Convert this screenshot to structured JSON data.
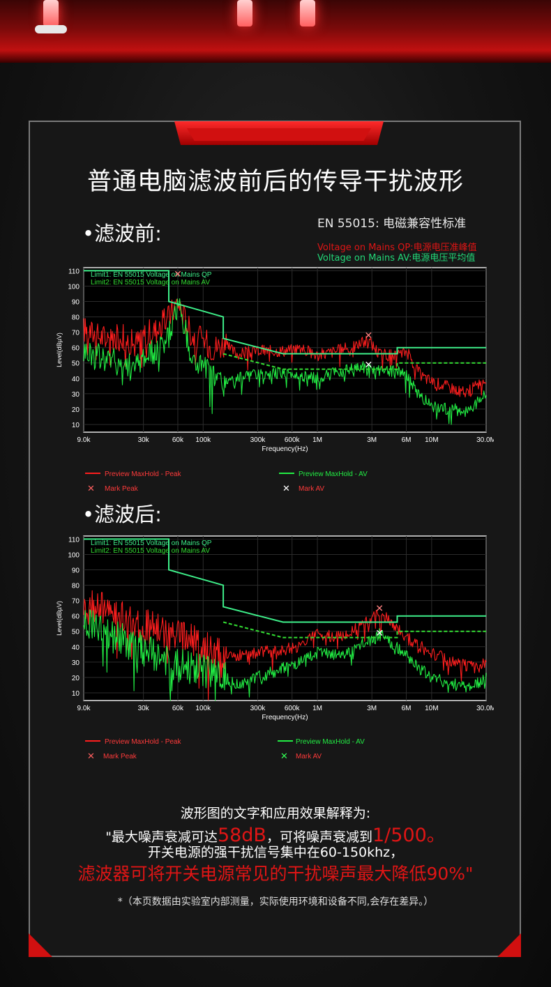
{
  "page": {
    "title": "普通电脑滤波前后的传导干扰波形",
    "section_before": "•滤波前:",
    "section_after": "•滤波后:",
    "standard": "EN 55015:  电磁兼容性标准",
    "legend_qp": "Voltage on Mains QP:电源电压准峰值",
    "legend_av": "Voltage on Mains AV:电源电压平均值",
    "explanation_line1": "波形图的文字和应用效果解释为:",
    "explanation_line2_a": "\"最大噪声衰减可达",
    "explanation_line2_hl1": "58dB",
    "explanation_line2_b": "，可将噪声衰减到",
    "explanation_line2_hl2": "1/500。",
    "explanation_line3": "开关电源的强干扰信号集中在60-150khz，",
    "explanation_line4": "滤波器可将开关电源常见的干扰噪声最大降低90%\"",
    "disclaimer": "*（本页数据由实验室内部测量，实际使用环境和设备不同,会存在差异。）"
  },
  "colors": {
    "accent_red": "#e01515",
    "peak_red": "#ff1e1e",
    "av_green": "#22ee44",
    "limit_green": "#3ef08a",
    "panel_bg": "#171717"
  },
  "chart_data": [
    {
      "type": "line",
      "panel": "before",
      "xlabel": "Frequency(Hz)",
      "ylabel": "Level(dBµV)",
      "x_scale": "log",
      "xlim": [
        9000,
        30000000
      ],
      "ylim": [
        5,
        112
      ],
      "xticks": [
        9000,
        30000,
        60000,
        100000,
        300000,
        600000,
        1000000,
        3000000,
        6000000,
        10000000,
        30000000
      ],
      "xtick_labels": [
        "9.0k",
        "30k",
        "60k",
        "100k",
        "300k",
        "600k",
        "1M",
        "3M",
        "6M",
        "10M",
        "30.0M"
      ],
      "yticks": [
        10,
        20,
        30,
        40,
        50,
        60,
        70,
        80,
        90,
        100,
        110
      ],
      "limit_labels": [
        "Limit1: EN 55015 Voltage on Mains QP",
        "Limit2: EN 55015 Voltage on Mains AV"
      ],
      "limits": [
        {
          "name": "Limit1: EN 55015 Voltage on Mains QP",
          "points": [
            [
              9000,
              110
            ],
            [
              50000,
              110
            ],
            [
              50000,
              90
            ],
            [
              150000,
              80
            ],
            [
              150000,
              66
            ],
            [
              500000,
              56
            ],
            [
              5000000,
              56
            ],
            [
              5000000,
              60
            ],
            [
              30000000,
              60
            ]
          ]
        },
        {
          "name": "Limit2: EN 55015 Voltage on Mains AV",
          "points": [
            [
              150000,
              56
            ],
            [
              500000,
              46
            ],
            [
              5000000,
              46
            ],
            [
              5000000,
              50
            ],
            [
              30000000,
              50
            ]
          ]
        }
      ],
      "series": [
        {
          "name": "Preview MaxHold - Peak",
          "points": [
            [
              9000,
              72
            ],
            [
              12000,
              68
            ],
            [
              15000,
              66
            ],
            [
              20000,
              67
            ],
            [
              25000,
              62
            ],
            [
              30000,
              68
            ],
            [
              40000,
              72
            ],
            [
              50000,
              80
            ],
            [
              60000,
              90
            ],
            [
              70000,
              78
            ],
            [
              80000,
              68
            ],
            [
              100000,
              65
            ],
            [
              120000,
              60
            ],
            [
              150000,
              62
            ],
            [
              200000,
              56
            ],
            [
              300000,
              58
            ],
            [
              500000,
              58
            ],
            [
              700000,
              60
            ],
            [
              1000000,
              55
            ],
            [
              1500000,
              58
            ],
            [
              2000000,
              60
            ],
            [
              2800000,
              65
            ],
            [
              3500000,
              56
            ],
            [
              5000000,
              54
            ],
            [
              6000000,
              58
            ],
            [
              8000000,
              42
            ],
            [
              10000000,
              38
            ],
            [
              15000000,
              34
            ],
            [
              20000000,
              30
            ],
            [
              25000000,
              36
            ],
            [
              30000000,
              40
            ]
          ]
        },
        {
          "name": "Preview MaxHold - AV",
          "points": [
            [
              9000,
              58
            ],
            [
              12000,
              55
            ],
            [
              15000,
              52
            ],
            [
              20000,
              50
            ],
            [
              25000,
              46
            ],
            [
              30000,
              55
            ],
            [
              40000,
              58
            ],
            [
              50000,
              68
            ],
            [
              60000,
              88
            ],
            [
              70000,
              70
            ],
            [
              80000,
              52
            ],
            [
              100000,
              48
            ],
            [
              120000,
              42
            ],
            [
              150000,
              36
            ],
            [
              200000,
              40
            ],
            [
              300000,
              42
            ],
            [
              500000,
              44
            ],
            [
              700000,
              42
            ],
            [
              1000000,
              40
            ],
            [
              1500000,
              44
            ],
            [
              2000000,
              46
            ],
            [
              2800000,
              48
            ],
            [
              3500000,
              44
            ],
            [
              5000000,
              46
            ],
            [
              6000000,
              42
            ],
            [
              8000000,
              28
            ],
            [
              10000000,
              22
            ],
            [
              15000000,
              20
            ],
            [
              20000000,
              18
            ],
            [
              25000000,
              24
            ],
            [
              30000000,
              30
            ]
          ]
        }
      ],
      "markers": [
        {
          "name": "Mark Peak",
          "x": 2800000,
          "y": 68
        },
        {
          "name": "Mark AV",
          "x": 2800000,
          "y": 49
        },
        {
          "name": "Mark Peak",
          "x": 60000,
          "y": 108
        }
      ],
      "legend": [
        "Preview MaxHold - Peak",
        "Preview MaxHold - AV",
        "Mark Peak",
        "Mark AV"
      ]
    },
    {
      "type": "line",
      "panel": "after",
      "xlabel": "Frequency(Hz)",
      "ylabel": "Level(dBµV)",
      "x_scale": "log",
      "xlim": [
        9000,
        30000000
      ],
      "ylim": [
        5,
        112
      ],
      "xticks": [
        9000,
        30000,
        60000,
        100000,
        300000,
        600000,
        1000000,
        3000000,
        6000000,
        10000000,
        30000000
      ],
      "xtick_labels": [
        "9.0k",
        "30k",
        "60k",
        "100k",
        "300k",
        "600k",
        "1M",
        "3M",
        "6M",
        "10M",
        "30.0M"
      ],
      "yticks": [
        10,
        20,
        30,
        40,
        50,
        60,
        70,
        80,
        90,
        100,
        110
      ],
      "limit_labels": [
        "Limit1: EN 55015 Voltage on Mains QP",
        "Limit2: EN 55015 Voltage on Mains AV"
      ],
      "limits": [
        {
          "name": "Limit1: EN 55015 Voltage on Mains QP",
          "points": [
            [
              9000,
              110
            ],
            [
              50000,
              110
            ],
            [
              50000,
              90
            ],
            [
              150000,
              80
            ],
            [
              150000,
              66
            ],
            [
              500000,
              56
            ],
            [
              5000000,
              56
            ],
            [
              5000000,
              60
            ],
            [
              30000000,
              60
            ]
          ]
        },
        {
          "name": "Limit2: EN 55015 Voltage on Mains AV",
          "points": [
            [
              150000,
              56
            ],
            [
              500000,
              46
            ],
            [
              5000000,
              46
            ],
            [
              5000000,
              50
            ],
            [
              30000000,
              50
            ]
          ]
        }
      ],
      "series": [
        {
          "name": "Preview MaxHold - Peak",
          "points": [
            [
              9000,
              68
            ],
            [
              12000,
              66
            ],
            [
              15000,
              64
            ],
            [
              20000,
              60
            ],
            [
              25000,
              56
            ],
            [
              30000,
              54
            ],
            [
              40000,
              52
            ],
            [
              50000,
              48
            ],
            [
              60000,
              46
            ],
            [
              80000,
              44
            ],
            [
              100000,
              40
            ],
            [
              120000,
              38
            ],
            [
              150000,
              36
            ],
            [
              200000,
              34
            ],
            [
              300000,
              36
            ],
            [
              500000,
              38
            ],
            [
              700000,
              40
            ],
            [
              1000000,
              48
            ],
            [
              1500000,
              46
            ],
            [
              2000000,
              50
            ],
            [
              3000000,
              58
            ],
            [
              3500000,
              62
            ],
            [
              4500000,
              56
            ],
            [
              5000000,
              52
            ],
            [
              6000000,
              46
            ],
            [
              8000000,
              40
            ],
            [
              10000000,
              36
            ],
            [
              15000000,
              30
            ],
            [
              20000000,
              28
            ],
            [
              25000000,
              26
            ],
            [
              30000000,
              30
            ]
          ]
        },
        {
          "name": "Preview MaxHold - AV",
          "points": [
            [
              9000,
              56
            ],
            [
              12000,
              52
            ],
            [
              15000,
              48
            ],
            [
              20000,
              44
            ],
            [
              25000,
              40
            ],
            [
              30000,
              38
            ],
            [
              40000,
              34
            ],
            [
              50000,
              30
            ],
            [
              60000,
              28
            ],
            [
              80000,
              26
            ],
            [
              100000,
              24
            ],
            [
              120000,
              22
            ],
            [
              150000,
              20
            ],
            [
              200000,
              16
            ],
            [
              300000,
              20
            ],
            [
              500000,
              26
            ],
            [
              700000,
              30
            ],
            [
              1000000,
              36
            ],
            [
              1500000,
              34
            ],
            [
              2000000,
              38
            ],
            [
              3000000,
              44
            ],
            [
              3500000,
              48
            ],
            [
              4500000,
              42
            ],
            [
              5000000,
              40
            ],
            [
              6000000,
              34
            ],
            [
              8000000,
              26
            ],
            [
              10000000,
              20
            ],
            [
              15000000,
              16
            ],
            [
              20000000,
              14
            ],
            [
              25000000,
              16
            ],
            [
              30000000,
              20
            ]
          ]
        }
      ],
      "markers": [
        {
          "name": "Mark Peak",
          "x": 3500000,
          "y": 65
        },
        {
          "name": "Mark AV",
          "x": 3500000,
          "y": 49
        }
      ],
      "legend": [
        "Preview MaxHold - Peak",
        "Preview MaxHold - AV",
        "Mark Peak",
        "Mark AV"
      ]
    }
  ]
}
